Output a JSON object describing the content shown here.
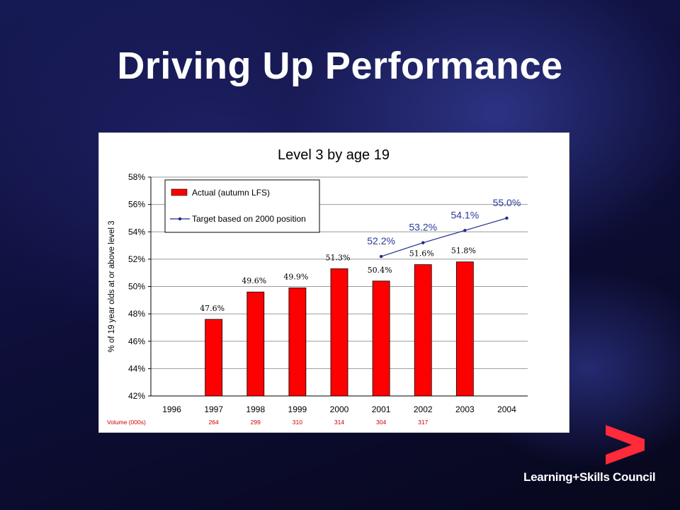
{
  "slide": {
    "title": "Driving Up Performance",
    "logo_text": "Learning+Skills Council",
    "accent_color": "#ff2a3a"
  },
  "chart_data": {
    "type": "bar",
    "title": "Level 3 by age 19",
    "ylabel": "% of 19 year olds at or above level 3",
    "xlabel": "",
    "ylim": [
      42,
      58
    ],
    "yticks": [
      "42%",
      "44%",
      "46%",
      "48%",
      "50%",
      "52%",
      "54%",
      "56%",
      "58%"
    ],
    "ytick_values": [
      42,
      44,
      46,
      48,
      50,
      52,
      54,
      56,
      58
    ],
    "grid": true,
    "legend_position": "top-left",
    "categories": [
      "1996",
      "1997",
      "1998",
      "1999",
      "2000",
      "2001",
      "2002",
      "2003",
      "2004"
    ],
    "series": [
      {
        "name": "Actual (autumn LFS)",
        "type": "bar",
        "color": "#ff0000",
        "values": [
          null,
          47.6,
          49.6,
          49.9,
          51.3,
          50.4,
          51.6,
          51.8,
          null
        ],
        "labels": [
          "",
          "47.6%",
          "49.6%",
          "49.9%",
          "51.3%",
          "50.4%",
          "51.6%",
          "51.8%",
          ""
        ]
      },
      {
        "name": "Target based on 2000 position",
        "type": "line",
        "color": "#1f2a8c",
        "values": [
          null,
          null,
          null,
          null,
          null,
          52.2,
          53.2,
          54.1,
          55.0
        ],
        "labels": [
          "",
          "",
          "",
          "",
          "",
          "52.2%",
          "53.2%",
          "54.1%",
          "55.0%"
        ]
      }
    ],
    "volume": {
      "label": "Volume (000s)",
      "values": [
        "",
        "264",
        "299",
        "310",
        "314",
        "304",
        "317",
        "",
        ""
      ]
    }
  }
}
